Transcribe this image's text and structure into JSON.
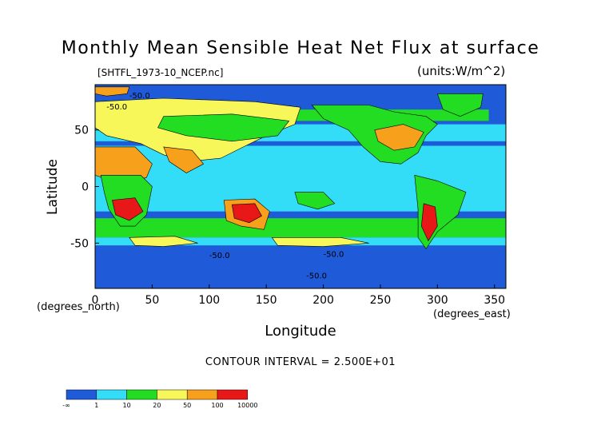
{
  "chart_data": {
    "type": "heatmap",
    "title": "Monthly Mean Sensible Heat Net Flux at surface",
    "subtitle_left": "[SHTFL_1973-10_NCEP.nc]",
    "subtitle_right": "(units:W/m^2)",
    "xlabel": "Longitude",
    "ylabel": "Latitude",
    "x_unit": "(degrees_east)",
    "y_unit": "(degrees_north)",
    "xlim": [
      0,
      360
    ],
    "ylim": [
      -90,
      90
    ],
    "x_ticks": [
      "0",
      "50",
      "100",
      "150",
      "200",
      "250",
      "300",
      "350"
    ],
    "x_tick_values": [
      0,
      50,
      100,
      150,
      200,
      250,
      300,
      350
    ],
    "y_ticks": [
      "50",
      "0",
      "-50"
    ],
    "y_tick_values": [
      50,
      0,
      -50
    ],
    "contour_interval_text": "CONTOUR INTERVAL = 2.500E+01",
    "contour_labels": [
      "-50.0",
      "-50.0",
      "-50.0",
      "-50.0",
      "-50.0"
    ],
    "colorbar": {
      "labels": [
        "-∞",
        "1",
        "10",
        "20",
        "50",
        "100",
        "10000"
      ],
      "colors": [
        "#1f5ad9",
        "#33ddf7",
        "#22dd22",
        "#f7f75a",
        "#f7a01c",
        "#e81818"
      ]
    },
    "background_color": "#1f5ad9"
  }
}
